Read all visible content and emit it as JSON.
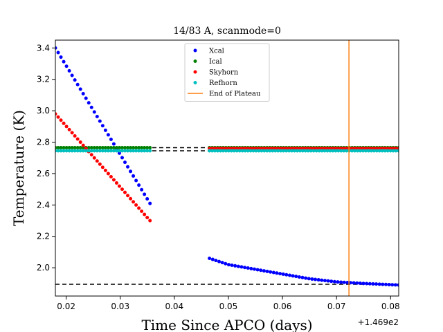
{
  "chart_data": {
    "type": "scatter",
    "title": "14/83 A, scanmode=0",
    "xlabel": "Time Since APCO (days)",
    "ylabel": "Temperature (K)",
    "x_offset_label": "+1.469e2",
    "xlim": [
      0.018,
      0.0815
    ],
    "ylim": [
      1.82,
      3.45
    ],
    "xticks": [
      0.02,
      0.03,
      0.04,
      0.05,
      0.06,
      0.07,
      0.08
    ],
    "xtick_labels": [
      "0.02",
      "0.03",
      "0.04",
      "0.05",
      "0.06",
      "0.07",
      "0.08"
    ],
    "yticks": [
      2.0,
      2.2,
      2.4,
      2.6,
      2.8,
      3.0,
      3.2,
      3.4
    ],
    "ytick_labels": [
      "2.0",
      "2.2",
      "2.4",
      "2.6",
      "2.8",
      "3.0",
      "3.2",
      "3.4"
    ],
    "grid": false,
    "legend_position": "top-center",
    "series": [
      {
        "name": "Xcal",
        "color": "#0000ff",
        "segments": [
          {
            "x_start": 0.018,
            "x_end": 0.0355,
            "count": 35,
            "y_start": 3.4,
            "y_end": 2.41
          },
          {
            "x_start": 0.0465,
            "x_end": 0.0815,
            "count": 60,
            "y_curve": [
              [
                0.0465,
                2.06
              ],
              [
                0.05,
                2.02
              ],
              [
                0.055,
                1.99
              ],
              [
                0.06,
                1.96
              ],
              [
                0.065,
                1.93
              ],
              [
                0.07,
                1.91
              ],
              [
                0.075,
                1.9
              ],
              [
                0.0815,
                1.89
              ]
            ]
          }
        ]
      },
      {
        "name": "Ical",
        "color": "#008000",
        "segments": [
          {
            "x_start": 0.018,
            "x_end": 0.0355,
            "count": 35,
            "y_start": 2.765,
            "y_end": 2.765
          },
          {
            "x_start": 0.0465,
            "x_end": 0.0815,
            "count": 70,
            "y_start": 2.765,
            "y_end": 2.765
          }
        ]
      },
      {
        "name": "Skyhorn",
        "color": "#ff0000",
        "segments": [
          {
            "x_start": 0.018,
            "x_end": 0.0355,
            "count": 35,
            "y_start": 2.98,
            "y_end": 2.3
          },
          {
            "x_start": 0.0465,
            "x_end": 0.0815,
            "count": 70,
            "y_start": 2.76,
            "y_end": 2.76
          }
        ]
      },
      {
        "name": "Refhorn",
        "color": "#00bfbf",
        "segments": [
          {
            "x_start": 0.018,
            "x_end": 0.0355,
            "count": 35,
            "y_start": 2.745,
            "y_end": 2.745
          },
          {
            "x_start": 0.0465,
            "x_end": 0.0815,
            "count": 70,
            "y_start": 2.745,
            "y_end": 2.745
          }
        ]
      }
    ],
    "reference_lines": [
      {
        "y": 2.765,
        "style": "dashed",
        "color": "#000000"
      },
      {
        "y": 2.745,
        "style": "dashed",
        "color": "#000000"
      },
      {
        "y": 1.895,
        "style": "dashed",
        "color": "#000000"
      }
    ],
    "vertical_line": {
      "name": "End of Plateau",
      "x": 0.0723,
      "color": "#ff7f0e"
    }
  }
}
